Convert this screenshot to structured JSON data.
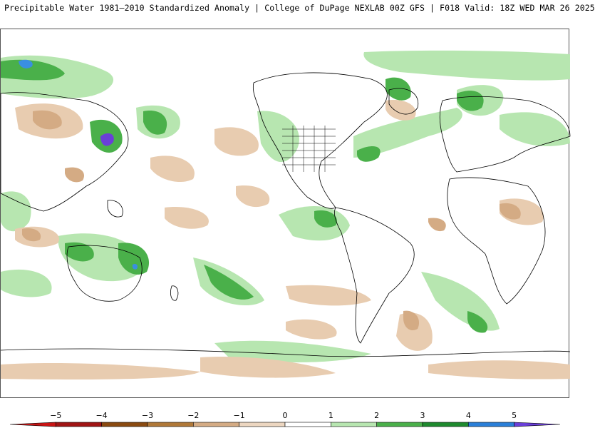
{
  "header": {
    "title": "Precipitable Water 1981–2010 Standardized Anomaly | College of DuPage NEXLAB  00Z GFS | F018 Valid: 18Z WED MAR 26 2025"
  },
  "map": {
    "variable": "Precipitable Water Standardized Anomaly",
    "projection": "cylindrical-equidistant",
    "center": "pacific",
    "colors": {
      "land_outline": "#000000",
      "state_outline": "#000000",
      "positive_1": "#b7e6b0",
      "positive_2": "#4ab04a",
      "positive_3": "#1e8a2e",
      "positive_4": "#0a5a14",
      "positive_5": "#3a8fe0",
      "positive_6": "#6a3fd8",
      "negative_1": "#e8ccb0",
      "negative_2": "#d4ab84",
      "negative_3": "#b07838",
      "negative_4": "#8a3010",
      "negative_5": "#a01414"
    }
  },
  "colorbar": {
    "ticks": [
      "-5",
      "-4",
      "-3",
      "-2",
      "-1",
      "0",
      "1",
      "2",
      "3",
      "4",
      "5"
    ],
    "bins": [
      {
        "from": -6,
        "to": -5,
        "color": "#c81414"
      },
      {
        "from": -5,
        "to": -4,
        "color": "#a01414"
      },
      {
        "from": -4,
        "to": -3,
        "color": "#8a4a10"
      },
      {
        "from": -3,
        "to": -2,
        "color": "#b07838"
      },
      {
        "from": -2,
        "to": -1,
        "color": "#d4ab84"
      },
      {
        "from": -1,
        "to": 0,
        "color": "#ecd6c0"
      },
      {
        "from": 0,
        "to": 1,
        "color": "#ffffff"
      },
      {
        "from": 1,
        "to": 2,
        "color": "#b7e6b0"
      },
      {
        "from": 2,
        "to": 3,
        "color": "#4ab04a"
      },
      {
        "from": 3,
        "to": 4,
        "color": "#1e8a2e"
      },
      {
        "from": 4,
        "to": 5,
        "color": "#2a7fd8"
      },
      {
        "from": 5,
        "to": 6,
        "color": "#6a3fd8"
      }
    ]
  }
}
